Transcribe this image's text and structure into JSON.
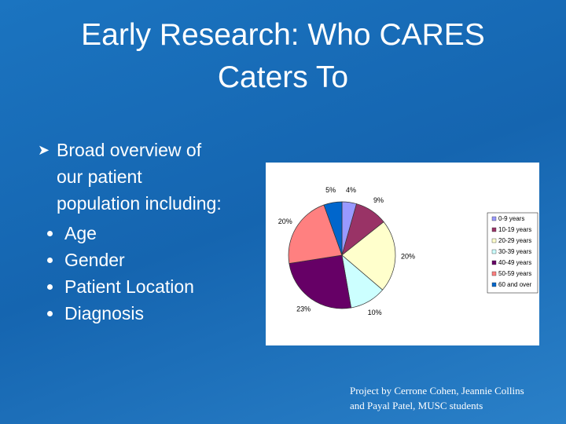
{
  "title": [
    "Early Research: Who CARES",
    "Caters To"
  ],
  "bullet": {
    "lines": [
      "Broad overview of",
      "our patient",
      "population including:"
    ],
    "items": [
      "Age",
      "Gender",
      "Patient Location",
      "Diagnosis"
    ]
  },
  "footer": [
    "Project by Cerrone Cohen, Jeannie Collins",
    "and Payal Patel, MUSC students"
  ],
  "chart_data": {
    "type": "pie",
    "categories": [
      "0-9 years",
      "10-19 years",
      "20-29 years",
      "30-39 years",
      "40-49 years",
      "50-59 years",
      "60 and over"
    ],
    "values": [
      4,
      9,
      20,
      10,
      23,
      20,
      5
    ],
    "value_labels": [
      "4%",
      "9%",
      "20%",
      "10%",
      "23%",
      "20%",
      "5%"
    ],
    "colors": [
      "#9999ff",
      "#993366",
      "#ffffcc",
      "#ccffff",
      "#660066",
      "#ff8080",
      "#0066cc"
    ],
    "legend": "right"
  }
}
